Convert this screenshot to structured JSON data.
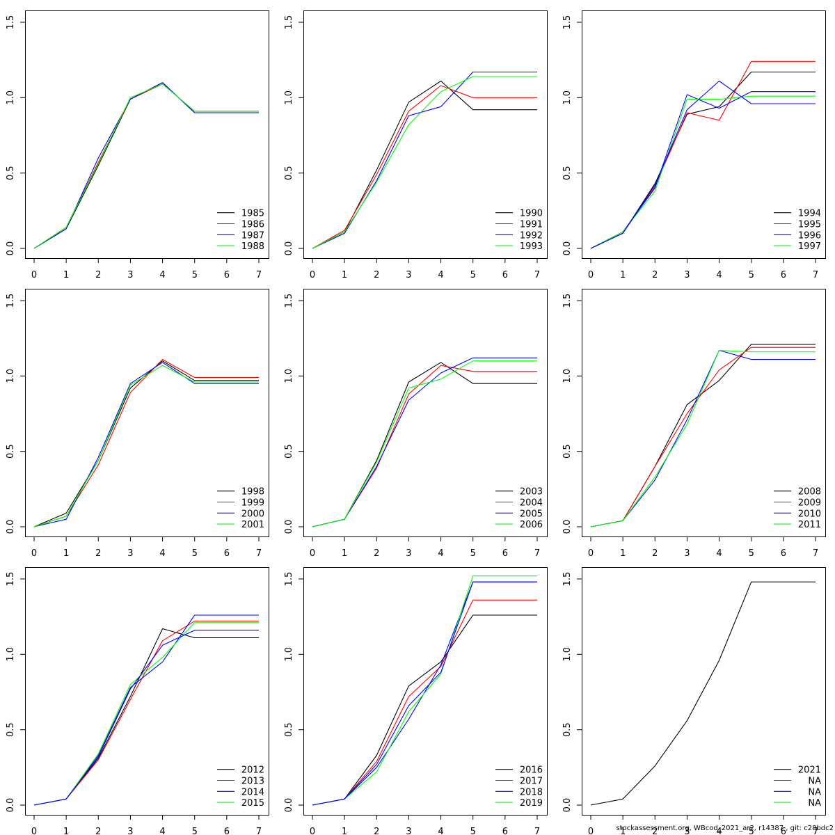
{
  "footer": "stockassessment.org, WBcod_2021_ar2, r14387 , git: c28bdc2",
  "colors": [
    "#000000",
    "#ff0000",
    "#0000ff",
    "#00ff00"
  ],
  "chart_data": [
    {
      "type": "line",
      "xlim": [
        0,
        7
      ],
      "ylim": [
        0,
        1.5
      ],
      "x": [
        0,
        1,
        2,
        3,
        4,
        5,
        6,
        7
      ],
      "xticks": [
        "0",
        "1",
        "2",
        "3",
        "4",
        "5",
        "6",
        "7"
      ],
      "yticks": [
        "0.0",
        "0.5",
        "1.0",
        "1.5"
      ],
      "legend_position": "bottom-right",
      "series": [
        {
          "name": "1985",
          "values": [
            0,
            0.13,
            0.55,
            0.99,
            1.1,
            0.9,
            0.9,
            0.9
          ]
        },
        {
          "name": "1986",
          "values": [
            0,
            0.14,
            0.57,
            0.99,
            1.09,
            0.91,
            0.91,
            0.91
          ]
        },
        {
          "name": "1987",
          "values": [
            0,
            0.13,
            0.6,
            0.99,
            1.1,
            0.9,
            0.9,
            0.9
          ]
        },
        {
          "name": "1988",
          "values": [
            0,
            0.14,
            0.56,
            1.0,
            1.09,
            0.91,
            0.91,
            0.91
          ]
        }
      ]
    },
    {
      "type": "line",
      "xlim": [
        0,
        7
      ],
      "ylim": [
        0,
        1.5
      ],
      "x": [
        0,
        1,
        2,
        3,
        4,
        5,
        6,
        7
      ],
      "xticks": [
        "0",
        "1",
        "2",
        "3",
        "4",
        "5",
        "6",
        "7"
      ],
      "yticks": [
        "0.0",
        "0.5",
        "1.0",
        "1.5"
      ],
      "legend_position": "bottom-right",
      "series": [
        {
          "name": "1990",
          "values": [
            0,
            0.11,
            0.52,
            0.97,
            1.11,
            0.92,
            0.92,
            0.92
          ]
        },
        {
          "name": "1991",
          "values": [
            0,
            0.12,
            0.49,
            0.91,
            1.08,
            1.0,
            1.0,
            1.0
          ]
        },
        {
          "name": "1992",
          "values": [
            0,
            0.1,
            0.45,
            0.88,
            0.94,
            1.17,
            1.17,
            1.17
          ]
        },
        {
          "name": "1993",
          "values": [
            0,
            0.11,
            0.44,
            0.82,
            1.04,
            1.14,
            1.14,
            1.14
          ]
        }
      ]
    },
    {
      "type": "line",
      "xlim": [
        0,
        7
      ],
      "ylim": [
        0,
        1.5
      ],
      "x": [
        0,
        1,
        2,
        3,
        4,
        5,
        6,
        7
      ],
      "xticks": [
        "0",
        "1",
        "2",
        "3",
        "4",
        "5",
        "6",
        "7"
      ],
      "yticks": [
        "0.0",
        "0.5",
        "1.0",
        "1.5"
      ],
      "legend_position": "bottom-right",
      "series": [
        {
          "name": "1994",
          "values": [
            0,
            0.1,
            0.43,
            0.89,
            0.94,
            1.17,
            1.17,
            1.17
          ]
        },
        {
          "name": "1995",
          "values": [
            0,
            0.1,
            0.41,
            0.9,
            0.85,
            1.24,
            1.24,
            1.24
          ]
        },
        {
          "name": "1996",
          "values": [
            0,
            0.11,
            0.4,
            1.02,
            0.93,
            1.04,
            1.04,
            1.04
          ]
        },
        {
          "name": "1997",
          "values": [
            0,
            0.11,
            0.38,
            0.99,
            0.99,
            1.01,
            1.01,
            1.01
          ]
        },
        {
          "name": "",
          "values": [
            0,
            0.1,
            0.42,
            0.92,
            1.11,
            0.96,
            0.96,
            0.96
          ],
          "color": "#0000ff"
        }
      ]
    },
    {
      "type": "line",
      "xlim": [
        0,
        7
      ],
      "ylim": [
        0,
        1.5
      ],
      "x": [
        0,
        1,
        2,
        3,
        4,
        5,
        6,
        7
      ],
      "xticks": [
        "0",
        "1",
        "2",
        "3",
        "4",
        "5",
        "6",
        "7"
      ],
      "yticks": [
        "0.0",
        "0.5",
        "1.0",
        "1.5"
      ],
      "legend_position": "bottom-right",
      "series": [
        {
          "name": "1998",
          "values": [
            0,
            0.09,
            0.44,
            0.92,
            1.1,
            0.97,
            0.97,
            0.97
          ]
        },
        {
          "name": "1999",
          "values": [
            0,
            0.07,
            0.41,
            0.89,
            1.11,
            0.99,
            0.99,
            0.99
          ]
        },
        {
          "name": "2000",
          "values": [
            0,
            0.05,
            0.46,
            0.95,
            1.09,
            0.95,
            0.95,
            0.95
          ]
        },
        {
          "name": "2001",
          "values": [
            0,
            0.07,
            0.44,
            0.94,
            1.07,
            0.96,
            0.96,
            0.96
          ]
        }
      ]
    },
    {
      "type": "line",
      "xlim": [
        0,
        7
      ],
      "ylim": [
        0,
        1.5
      ],
      "x": [
        0,
        1,
        2,
        3,
        4,
        5,
        6,
        7
      ],
      "xticks": [
        "0",
        "1",
        "2",
        "3",
        "4",
        "5",
        "6",
        "7"
      ],
      "yticks": [
        "0.0",
        "0.5",
        "1.0",
        "1.5"
      ],
      "legend_position": "bottom-right",
      "series": [
        {
          "name": "2003",
          "values": [
            0,
            0.05,
            0.44,
            0.96,
            1.09,
            0.95,
            0.95,
            0.95
          ]
        },
        {
          "name": "2004",
          "values": [
            0,
            0.05,
            0.39,
            0.88,
            1.07,
            1.03,
            1.03,
            1.03
          ]
        },
        {
          "name": "2005",
          "values": [
            0,
            0.05,
            0.4,
            0.84,
            1.02,
            1.12,
            1.12,
            1.12
          ]
        },
        {
          "name": "2006",
          "values": [
            0,
            0.05,
            0.43,
            0.92,
            0.98,
            1.1,
            1.1,
            1.1
          ]
        }
      ]
    },
    {
      "type": "line",
      "xlim": [
        0,
        7
      ],
      "ylim": [
        0,
        1.5
      ],
      "x": [
        0,
        1,
        2,
        3,
        4,
        5,
        6,
        7
      ],
      "xticks": [
        "0",
        "1",
        "2",
        "3",
        "4",
        "5",
        "6",
        "7"
      ],
      "yticks": [
        "0.0",
        "0.5",
        "1.0",
        "1.5"
      ],
      "legend_position": "bottom-right",
      "series": [
        {
          "name": "2008",
          "values": [
            0,
            0.04,
            0.4,
            0.81,
            0.97,
            1.21,
            1.21,
            1.21
          ]
        },
        {
          "name": "2009",
          "values": [
            0,
            0.04,
            0.4,
            0.75,
            1.04,
            1.19,
            1.19,
            1.19
          ]
        },
        {
          "name": "2010",
          "values": [
            0,
            0.04,
            0.31,
            0.71,
            1.17,
            1.11,
            1.11,
            1.11
          ]
        },
        {
          "name": "2011",
          "values": [
            0,
            0.04,
            0.33,
            0.68,
            1.17,
            1.16,
            1.16,
            1.16
          ]
        }
      ]
    },
    {
      "type": "line",
      "xlim": [
        0,
        7
      ],
      "ylim": [
        0,
        1.5
      ],
      "x": [
        0,
        1,
        2,
        3,
        4,
        5,
        6,
        7
      ],
      "xticks": [
        "0",
        "1",
        "2",
        "3",
        "4",
        "5",
        "6",
        "7"
      ],
      "yticks": [
        "0.0",
        "0.5",
        "1.0",
        "1.5"
      ],
      "legend_position": "bottom-right",
      "series": [
        {
          "name": "2012",
          "values": [
            0,
            0.04,
            0.31,
            0.72,
            1.17,
            1.11,
            1.11,
            1.11
          ]
        },
        {
          "name": "2013",
          "values": [
            0,
            0.04,
            0.3,
            0.7,
            1.09,
            1.22,
            1.22,
            1.22
          ]
        },
        {
          "name": "2014",
          "values": [
            0,
            0.04,
            0.33,
            0.78,
            0.95,
            1.26,
            1.26,
            1.26
          ]
        },
        {
          "name": "2015",
          "values": [
            0,
            0.04,
            0.34,
            0.8,
            0.98,
            1.21,
            1.21,
            1.21
          ]
        },
        {
          "name": "",
          "values": [
            0,
            0.04,
            0.32,
            0.77,
            1.06,
            1.16,
            1.16,
            1.16
          ],
          "color": "#0000ff"
        }
      ]
    },
    {
      "type": "line",
      "xlim": [
        0,
        7
      ],
      "ylim": [
        0,
        1.5
      ],
      "x": [
        0,
        1,
        2,
        3,
        4,
        5,
        6,
        7
      ],
      "xticks": [
        "0",
        "1",
        "2",
        "3",
        "4",
        "5",
        "6",
        "7"
      ],
      "yticks": [
        "0.0",
        "0.5",
        "1.0",
        "1.5"
      ],
      "legend_position": "bottom-right",
      "series": [
        {
          "name": "2016",
          "values": [
            0,
            0.04,
            0.33,
            0.79,
            0.95,
            1.26,
            1.26,
            1.26
          ]
        },
        {
          "name": "2017",
          "values": [
            0,
            0.04,
            0.29,
            0.72,
            0.92,
            1.36,
            1.36,
            1.36
          ]
        },
        {
          "name": "2018",
          "values": [
            0,
            0.04,
            0.25,
            0.57,
            0.93,
            1.48,
            1.48,
            1.48
          ]
        },
        {
          "name": "2019",
          "values": [
            0,
            0.04,
            0.22,
            0.62,
            0.87,
            1.52,
            1.52,
            1.52
          ]
        },
        {
          "name": "",
          "values": [
            0,
            0.04,
            0.27,
            0.66,
            0.88,
            1.48,
            1.48,
            1.48
          ],
          "color": "#0000ff"
        }
      ]
    },
    {
      "type": "line",
      "xlim": [
        0,
        7
      ],
      "ylim": [
        0,
        1.5
      ],
      "x": [
        0,
        1,
        2,
        3,
        4,
        5,
        6,
        7
      ],
      "xticks": [
        "0",
        "1",
        "2",
        "3",
        "4",
        "5",
        "6",
        "7"
      ],
      "yticks": [
        "0.0",
        "0.5",
        "1.0",
        "1.5"
      ],
      "legend_position": "bottom-right",
      "series": [
        {
          "name": "2021",
          "values": [
            0,
            0.04,
            0.26,
            0.56,
            0.96,
            1.48,
            1.48,
            1.48
          ]
        },
        {
          "name": "NA",
          "values": null
        },
        {
          "name": "NA",
          "values": null
        },
        {
          "name": "NA",
          "values": null
        }
      ]
    }
  ]
}
